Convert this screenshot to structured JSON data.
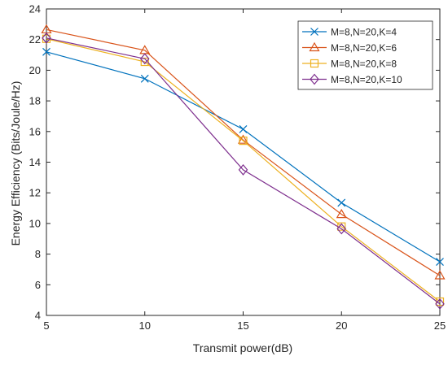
{
  "chart_data": {
    "type": "line",
    "xlabel": "Transmit power(dB)",
    "ylabel": "Energy Efficiency (Bits/Joule/Hz)",
    "xlim": [
      5,
      25
    ],
    "ylim": [
      4,
      24
    ],
    "x_ticks": [
      5,
      10,
      15,
      20,
      25
    ],
    "y_ticks": [
      4,
      6,
      8,
      10,
      12,
      14,
      16,
      18,
      20,
      22,
      24
    ],
    "grid": false,
    "legend_position": "top-right",
    "x": [
      5,
      10,
      15,
      20,
      25
    ],
    "series": [
      {
        "name": "M=8,N=20,K=4",
        "marker": "x-marker",
        "color": "#0072BD",
        "values": [
          21.2,
          19.45,
          16.15,
          11.35,
          7.5
        ]
      },
      {
        "name": "M=8,N=20,K=6",
        "marker": "triangle-marker",
        "color": "#D95319",
        "values": [
          22.65,
          21.3,
          15.45,
          10.6,
          6.6
        ]
      },
      {
        "name": "M=8,N=20,K=8",
        "marker": "square-marker",
        "color": "#EDB120",
        "values": [
          22.05,
          20.55,
          15.4,
          9.8,
          4.9
        ]
      },
      {
        "name": "M=8,N=20,K=10",
        "marker": "diamond-marker",
        "color": "#7E2F8E",
        "values": [
          22.1,
          20.75,
          13.5,
          9.65,
          4.75
        ]
      }
    ]
  }
}
